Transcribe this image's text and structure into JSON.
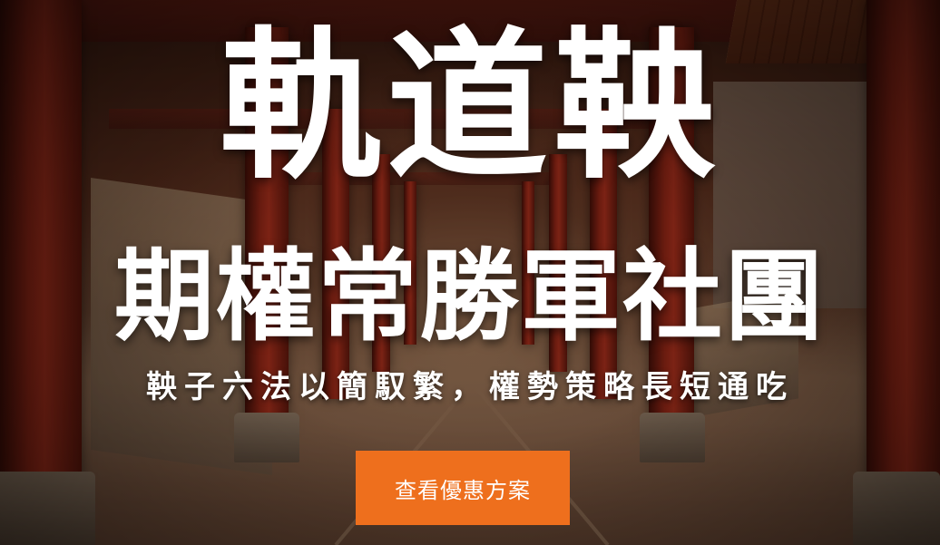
{
  "hero": {
    "title": "軌道鞅",
    "subtitle": "期權常勝軍社團",
    "tagline": "鞅子六法以簡馭繁，權勢策略長短通吃",
    "cta_label": "查看優惠方案",
    "accent_color": "#ee6f1d",
    "background_image": "temple-corridor-photo"
  }
}
